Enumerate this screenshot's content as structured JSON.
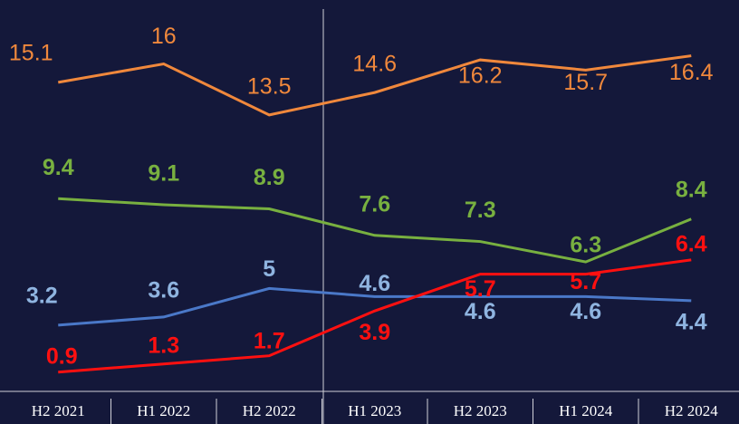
{
  "chart_data": {
    "type": "line",
    "categories": [
      "H2 2021",
      "H1 2022",
      "H2 2022",
      "H1 2023",
      "H2 2023",
      "H1 2024",
      "H2 2024"
    ],
    "ylim": [
      0,
      19
    ],
    "series": [
      {
        "name": null,
        "color": "#f0883c",
        "values": [
          15.1,
          16,
          13.5,
          14.6,
          16.2,
          15.7,
          16.4
        ]
      },
      {
        "name": null,
        "color": "#78b040",
        "values": [
          9.4,
          9.1,
          8.9,
          7.6,
          7.3,
          6.3,
          8.4
        ]
      },
      {
        "name": null,
        "color": "#4a78c8",
        "values": [
          3.2,
          3.6,
          5,
          4.6,
          4.6,
          4.6,
          4.4
        ]
      },
      {
        "name": null,
        "color": "#ff1010",
        "values": [
          0.9,
          1.3,
          1.7,
          3.9,
          5.7,
          5.7,
          6.4
        ]
      }
    ]
  }
}
